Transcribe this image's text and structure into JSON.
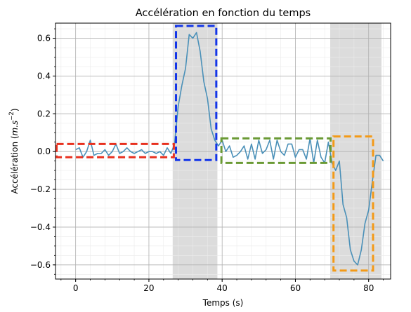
{
  "chart_data": {
    "type": "line",
    "title": "Accélération en fonction du temps",
    "xlabel": "Temps (s)",
    "ylabel_main": "Accélération (",
    "ylabel_unit": "m.s",
    "ylabel_exp": "−2",
    "ylabel_close": ")",
    "xlim": [
      -5.5,
      86
    ],
    "ylim": [
      -0.675,
      0.68
    ],
    "x_ticks": [
      0,
      20,
      40,
      60,
      80
    ],
    "x_tick_labels": [
      "0",
      "20",
      "40",
      "60",
      "80"
    ],
    "y_ticks": [
      -0.6,
      -0.4,
      -0.2,
      0.0,
      0.2,
      0.4,
      0.6
    ],
    "y_tick_labels": [
      "−0.6",
      "−0.4",
      "−0.2",
      "0.0",
      "0.2",
      "0.4",
      "0.6"
    ],
    "x_minor_step": 4,
    "y_minor_step": 0.05,
    "grid": "major and minor",
    "line_color": "#4a90b8",
    "series": [
      {
        "x": [
          0,
          1,
          2,
          3,
          4,
          5,
          6,
          7,
          8,
          9,
          10,
          11,
          12,
          13,
          14,
          15,
          16,
          17,
          18,
          19,
          20,
          21,
          22,
          23,
          24,
          25,
          26,
          27,
          28,
          29,
          30,
          31,
          32,
          33,
          34,
          35,
          36,
          37,
          38,
          39,
          40,
          41,
          42,
          43,
          44,
          45,
          46,
          47,
          48,
          49,
          50,
          51,
          52,
          53,
          54,
          55,
          56,
          57,
          58,
          59,
          60,
          61,
          62,
          63,
          64,
          65,
          66,
          67,
          68,
          69,
          70,
          71,
          72,
          73,
          74,
          75,
          76,
          77,
          78,
          79,
          80,
          81,
          82,
          83,
          84
        ],
        "y": [
          0.01,
          0.02,
          -0.03,
          0.0,
          0.06,
          -0.02,
          -0.01,
          -0.01,
          0.01,
          -0.02,
          0.0,
          0.04,
          -0.01,
          0.0,
          0.02,
          0.0,
          -0.01,
          0.0,
          0.01,
          -0.01,
          0.0,
          0.0,
          -0.01,
          0.0,
          -0.02,
          0.02,
          -0.01,
          0.04,
          0.24,
          0.35,
          0.44,
          0.62,
          0.6,
          0.63,
          0.53,
          0.37,
          0.28,
          0.12,
          0.06,
          0.03,
          0.06,
          0.0,
          0.03,
          -0.03,
          -0.02,
          0.0,
          0.03,
          -0.04,
          0.04,
          -0.04,
          0.06,
          -0.01,
          0.01,
          0.06,
          -0.04,
          0.06,
          0.0,
          -0.02,
          0.04,
          0.04,
          -0.03,
          0.01,
          0.01,
          -0.04,
          0.07,
          -0.06,
          0.06,
          -0.03,
          -0.06,
          0.05,
          -0.06,
          -0.1,
          -0.05,
          -0.28,
          -0.35,
          -0.52,
          -0.58,
          -0.6,
          -0.52,
          -0.38,
          -0.31,
          -0.16,
          -0.02,
          -0.02,
          -0.05
        ]
      }
    ],
    "shaded_regions": [
      {
        "x0": 26.5,
        "x1": 38.7
      },
      {
        "x0": 69.5,
        "x1": 83.5
      }
    ],
    "highlight_boxes": [
      {
        "x0": -5.2,
        "x1": 26.8,
        "y0": -0.03,
        "y1": 0.04,
        "color": "#e8301e",
        "name": "red"
      },
      {
        "x0": 27.4,
        "x1": 38.4,
        "y0": -0.045,
        "y1": 0.665,
        "color": "#1436e8",
        "name": "blue"
      },
      {
        "x0": 39.8,
        "x1": 69.6,
        "y0": -0.06,
        "y1": 0.07,
        "color": "#6a9a34",
        "name": "green"
      },
      {
        "x0": 70.4,
        "x1": 81.2,
        "y0": -0.63,
        "y1": 0.08,
        "color": "#f39a18",
        "name": "orange"
      }
    ]
  }
}
